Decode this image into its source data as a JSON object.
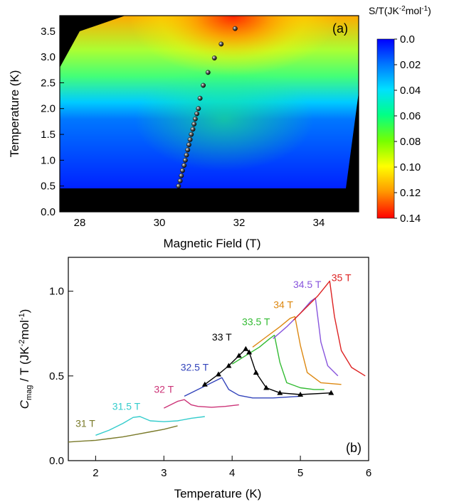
{
  "chart_data": [
    {
      "type": "heatmap",
      "panel_label": "(a)",
      "xlabel": "Magnetic Field (T)",
      "ylabel": "Temperature (K)",
      "xlim": [
        27.5,
        35
      ],
      "ylim": [
        0,
        3.8
      ],
      "xticks": [
        "28",
        "30",
        "32",
        "34"
      ],
      "xtick_values": [
        28,
        30,
        32,
        34
      ],
      "yticks": [
        "0.0",
        "0.5",
        "1.0",
        "1.5",
        "2.0",
        "2.5",
        "3.0",
        "3.5"
      ],
      "ytick_values": [
        0,
        0.5,
        1.0,
        1.5,
        2.0,
        2.5,
        3.0,
        3.5
      ],
      "colorbar_title_base": "S/T(JK",
      "colorbar_title_exp1": "-2",
      "colorbar_title_mid": "mol",
      "colorbar_title_exp2": "-1",
      "colorbar_title_end": ")",
      "colorbar_ticks": [
        "0.0",
        "0.02",
        "0.04",
        "0.06",
        "0.08",
        "0.10",
        "0.12",
        "0.14"
      ],
      "colorbar_tick_values": [
        0.0,
        0.02,
        0.04,
        0.06,
        0.08,
        0.1,
        0.12,
        0.14
      ],
      "colorbar_range": [
        0.0,
        0.14
      ],
      "colormap": [
        "#0000ff",
        "#00aaff",
        "#00ffee",
        "#00ff44",
        "#aaff00",
        "#ffff00",
        "#ff8800",
        "#ff0000"
      ],
      "transition_points": [
        {
          "x": 30.48,
          "y": 0.5
        },
        {
          "x": 30.52,
          "y": 0.6
        },
        {
          "x": 30.55,
          "y": 0.7
        },
        {
          "x": 30.58,
          "y": 0.8
        },
        {
          "x": 30.62,
          "y": 0.9
        },
        {
          "x": 30.65,
          "y": 1.0
        },
        {
          "x": 30.68,
          "y": 1.1
        },
        {
          "x": 30.71,
          "y": 1.2
        },
        {
          "x": 30.74,
          "y": 1.3
        },
        {
          "x": 30.77,
          "y": 1.4
        },
        {
          "x": 30.8,
          "y": 1.5
        },
        {
          "x": 30.84,
          "y": 1.6
        },
        {
          "x": 30.87,
          "y": 1.7
        },
        {
          "x": 30.9,
          "y": 1.8
        },
        {
          "x": 30.94,
          "y": 1.9
        },
        {
          "x": 30.98,
          "y": 2.0
        },
        {
          "x": 31.02,
          "y": 2.2
        },
        {
          "x": 31.1,
          "y": 2.45
        },
        {
          "x": 31.22,
          "y": 2.7
        },
        {
          "x": 31.38,
          "y": 2.98
        },
        {
          "x": 31.55,
          "y": 3.25
        },
        {
          "x": 31.9,
          "y": 3.55
        }
      ]
    },
    {
      "type": "line",
      "panel_label": "(b)",
      "xlabel": "Temperature (K)",
      "ylabel_main": "C",
      "ylabel_sub": "mag",
      "ylabel_rest": " / T (JK",
      "ylabel_exp1": "-2",
      "ylabel_mid": "mol",
      "ylabel_exp2": "-1",
      "ylabel_end": ")",
      "xlim": [
        1.6,
        6.0
      ],
      "ylim": [
        0,
        1.2
      ],
      "xticks": [
        "2",
        "3",
        "4",
        "5",
        "6"
      ],
      "xtick_values": [
        2,
        3,
        4,
        5,
        6
      ],
      "yticks": [
        "0.0",
        "0.5",
        "1.0"
      ],
      "ytick_values": [
        0,
        0.5,
        1.0
      ],
      "series": [
        {
          "name": "31 T",
          "color": "#7a7a2a",
          "label_pos": [
            1.85,
            0.2
          ],
          "x": [
            1.6,
            1.8,
            2.0,
            2.2,
            2.4,
            2.6,
            2.8,
            3.0,
            3.2
          ],
          "y": [
            0.11,
            0.115,
            0.12,
            0.13,
            0.14,
            0.155,
            0.17,
            0.185,
            0.205
          ]
        },
        {
          "name": "31.5 T",
          "color": "#33cccc",
          "label_pos": [
            2.45,
            0.3
          ],
          "x": [
            2.0,
            2.2,
            2.4,
            2.55,
            2.65,
            2.8,
            3.0,
            3.2,
            3.4,
            3.6
          ],
          "y": [
            0.15,
            0.18,
            0.22,
            0.255,
            0.26,
            0.235,
            0.23,
            0.235,
            0.25,
            0.26
          ]
        },
        {
          "name": "32 T",
          "color": "#cc3377",
          "label_pos": [
            3.0,
            0.4
          ],
          "x": [
            3.0,
            3.1,
            3.2,
            3.3,
            3.4,
            3.5,
            3.7,
            3.9,
            4.1
          ],
          "y": [
            0.31,
            0.33,
            0.35,
            0.36,
            0.33,
            0.32,
            0.315,
            0.32,
            0.33
          ]
        },
        {
          "name": "32.5 T",
          "color": "#3344bb",
          "label_pos": [
            3.45,
            0.53
          ],
          "x": [
            3.3,
            3.45,
            3.6,
            3.75,
            3.85,
            3.95,
            4.1,
            4.3,
            4.6,
            5.0
          ],
          "y": [
            0.38,
            0.41,
            0.44,
            0.47,
            0.49,
            0.42,
            0.385,
            0.37,
            0.37,
            0.38
          ]
        },
        {
          "name": "33 T",
          "color": "#000000",
          "label_pos": [
            3.85,
            0.71
          ],
          "x": [
            3.6,
            3.8,
            3.95,
            4.1,
            4.2,
            4.25,
            4.35,
            4.5,
            4.7,
            5.0,
            5.45
          ],
          "y": [
            0.45,
            0.51,
            0.56,
            0.62,
            0.66,
            0.64,
            0.52,
            0.43,
            0.4,
            0.39,
            0.4
          ]
        },
        {
          "name": "33.5 T",
          "color": "#33bb33",
          "label_pos": [
            4.35,
            0.8
          ],
          "x": [
            4.0,
            4.2,
            4.4,
            4.55,
            4.62,
            4.7,
            4.8,
            5.0,
            5.2,
            5.35
          ],
          "y": [
            0.57,
            0.62,
            0.67,
            0.72,
            0.74,
            0.58,
            0.46,
            0.43,
            0.42,
            0.42
          ]
        },
        {
          "name": "34 T",
          "color": "#dd8811",
          "label_pos": [
            4.75,
            0.9
          ],
          "x": [
            4.3,
            4.5,
            4.7,
            4.85,
            4.92,
            5.0,
            5.1,
            5.3,
            5.6
          ],
          "y": [
            0.67,
            0.73,
            0.79,
            0.84,
            0.85,
            0.68,
            0.52,
            0.46,
            0.45
          ]
        },
        {
          "name": "34.5 T",
          "color": "#8855dd",
          "label_pos": [
            5.1,
            1.02
          ],
          "x": [
            4.6,
            4.8,
            5.0,
            5.15,
            5.22,
            5.3,
            5.4,
            5.55
          ],
          "y": [
            0.72,
            0.79,
            0.87,
            0.94,
            0.96,
            0.7,
            0.56,
            0.5
          ]
        },
        {
          "name": "35 T",
          "color": "#dd2222",
          "label_pos": [
            5.6,
            1.06
          ],
          "x": [
            4.9,
            5.1,
            5.25,
            5.35,
            5.43,
            5.5,
            5.6,
            5.75,
            5.95
          ],
          "y": [
            0.83,
            0.91,
            0.97,
            1.02,
            1.06,
            0.85,
            0.65,
            0.55,
            0.5
          ]
        }
      ]
    }
  ]
}
